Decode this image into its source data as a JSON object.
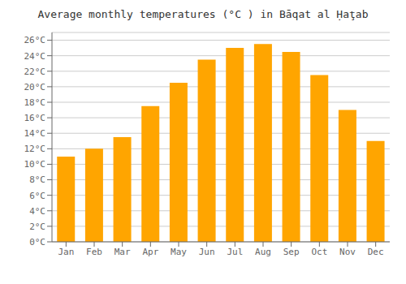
{
  "chart_data": {
    "type": "bar",
    "title": "Average monthly temperatures (°C ) in Bāqat al Ḥaţab",
    "categories": [
      "Jan",
      "Feb",
      "Mar",
      "Apr",
      "May",
      "Jun",
      "Jul",
      "Aug",
      "Sep",
      "Oct",
      "Nov",
      "Dec"
    ],
    "values": [
      11.0,
      12.0,
      13.5,
      17.5,
      20.5,
      23.5,
      25.0,
      25.5,
      24.5,
      21.5,
      17.0,
      13.0
    ],
    "color": "#FFA500",
    "ylim": [
      0,
      27
    ],
    "yticks": [
      {
        "value": 0,
        "label": "0°C"
      },
      {
        "value": 2,
        "label": "2°C"
      },
      {
        "value": 4,
        "label": "4°C"
      },
      {
        "value": 6,
        "label": "6°C"
      },
      {
        "value": 8,
        "label": "8°C"
      },
      {
        "value": 10,
        "label": "10°C"
      },
      {
        "value": 12,
        "label": "12°C"
      },
      {
        "value": 14,
        "label": "14°C"
      },
      {
        "value": 16,
        "label": "16°C"
      },
      {
        "value": 18,
        "label": "18°C"
      },
      {
        "value": 20,
        "label": "20°C"
      },
      {
        "value": 22,
        "label": "22°C"
      },
      {
        "value": 24,
        "label": "24°C"
      },
      {
        "value": 26,
        "label": "26°C"
      }
    ],
    "grid": true
  }
}
